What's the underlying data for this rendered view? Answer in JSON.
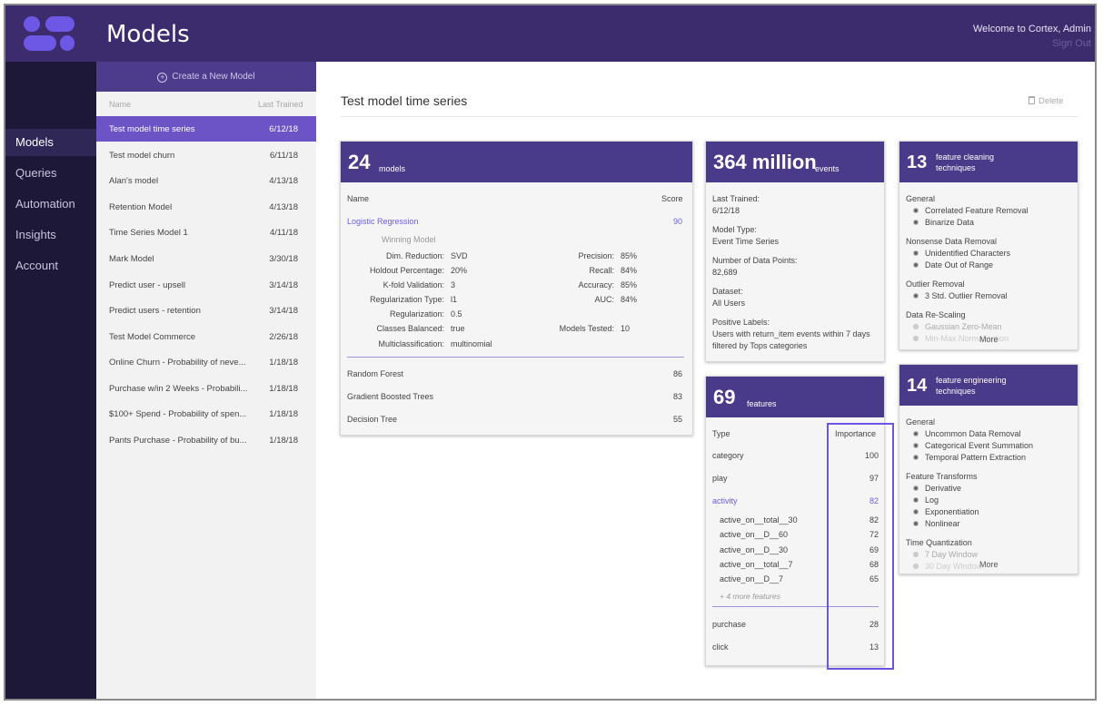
{
  "header": {
    "title": "Models",
    "welcome": "Welcome to Cortex, Admin",
    "sign_out": "Sign Out"
  },
  "nav": {
    "items": [
      {
        "label": "Models"
      },
      {
        "label": "Queries"
      },
      {
        "label": "Automation"
      },
      {
        "label": "Insights"
      },
      {
        "label": "Account"
      }
    ]
  },
  "list": {
    "create_label": "Create a New Model",
    "col_name": "Name",
    "col_last_trained": "Last Trained",
    "rows": [
      {
        "name": "Test model time series",
        "date": "6/12/18"
      },
      {
        "name": "Test model churn",
        "date": "6/11/18"
      },
      {
        "name": "Alan's model",
        "date": "4/13/18"
      },
      {
        "name": "Retention Model",
        "date": "4/13/18"
      },
      {
        "name": "Time Series Model 1",
        "date": "4/11/18"
      },
      {
        "name": "Mark Model",
        "date": "3/30/18"
      },
      {
        "name": "Predict user - upsell",
        "date": "3/14/18"
      },
      {
        "name": "Predict users - retention",
        "date": "3/14/18"
      },
      {
        "name": "Test Model Commerce",
        "date": "2/26/18"
      },
      {
        "name": "Online Churn - Probability of neve...",
        "date": "1/18/18"
      },
      {
        "name": "Purchase w/in 2 Weeks - Probabili...",
        "date": "1/18/18"
      },
      {
        "name": "$100+ Spend - Probability of spen...",
        "date": "1/18/18"
      },
      {
        "name": "Pants Purchase - Probability of bu...",
        "date": "1/18/18"
      }
    ]
  },
  "main": {
    "title": "Test model time series",
    "delete_label": "Delete"
  },
  "models_card": {
    "count": "24",
    "unit": "models",
    "col_name": "Name",
    "col_score": "Score",
    "winner": {
      "name": "Logistic Regression",
      "score": "90",
      "tag": "Winning Model"
    },
    "params_left": [
      {
        "label": "Dim. Reduction:",
        "value": "SVD"
      },
      {
        "label": "Holdout Percentage:",
        "value": "20%"
      },
      {
        "label": "K-fold Validation:",
        "value": "3"
      },
      {
        "label": "Regularization Type:",
        "value": "l1"
      },
      {
        "label": "Regularization:",
        "value": "0.5"
      },
      {
        "label": "Classes Balanced:",
        "value": "true"
      },
      {
        "label": "Multiclassification:",
        "value": "multinomial"
      }
    ],
    "params_right": [
      {
        "label": "Precision:",
        "value": "85%"
      },
      {
        "label": "Recall:",
        "value": "84%"
      },
      {
        "label": "Accuracy:",
        "value": "85%"
      },
      {
        "label": "AUC:",
        "value": "84%"
      },
      {
        "label": "Models Tested:",
        "value": "10"
      }
    ],
    "others": [
      {
        "name": "Random Forest",
        "score": "86"
      },
      {
        "name": "Gradient Boosted Trees",
        "score": "83"
      },
      {
        "name": "Decision Tree",
        "score": "55"
      }
    ]
  },
  "events_card": {
    "count": "364 million",
    "unit": "events",
    "fields": [
      {
        "label": "Last Trained:",
        "value": "6/12/18"
      },
      {
        "label": "Model Type:",
        "value": "Event Time Series"
      },
      {
        "label": "Number of Data Points:",
        "value": "82,689"
      },
      {
        "label": "Dataset:",
        "value": "All Users"
      },
      {
        "label": "Positive Labels:",
        "value": "Users with return_item events within 7 days",
        "value2": "filtered by Tops categories"
      }
    ]
  },
  "features_card": {
    "count": "69",
    "unit": "features",
    "col_type": "Type",
    "col_importance": "Importance",
    "top": [
      {
        "name": "category",
        "value": "100"
      },
      {
        "name": "play",
        "value": "97"
      },
      {
        "name": "activity",
        "value": "82"
      }
    ],
    "sub": [
      {
        "name": "active_on__total__30",
        "value": "82"
      },
      {
        "name": "active_on__D__60",
        "value": "72"
      },
      {
        "name": "active_on__D__30",
        "value": "69"
      },
      {
        "name": "active_on__total__7",
        "value": "68"
      },
      {
        "name": "active_on__D__7",
        "value": "65"
      }
    ],
    "more": "+ 4 more features",
    "bottom": [
      {
        "name": "purchase",
        "value": "28"
      },
      {
        "name": "click",
        "value": "13"
      }
    ]
  },
  "cleaning_card": {
    "count": "13",
    "title1": "feature cleaning",
    "title2": "techniques",
    "groups": [
      {
        "title": "General",
        "items": [
          "Correlated Feature Removal",
          "Binarize Data"
        ]
      },
      {
        "title": "Nonsense Data Removal",
        "items": [
          "Unidentified Characters",
          "Date Out of Range"
        ]
      },
      {
        "title": "Outlier Removal",
        "items": [
          "3 Std. Outlier Removal"
        ]
      },
      {
        "title": "Data Re-Scaling",
        "items": [
          "Gaussian Zero-Mean",
          "Min-Max Normalization"
        ]
      }
    ],
    "more": "More"
  },
  "engineering_card": {
    "count": "14",
    "title1": "feature engineering",
    "title2": "techniques",
    "groups": [
      {
        "title": "General",
        "items": [
          "Uncommon Data Removal",
          "Categorical Event Summation",
          "Temporal Pattern Extraction"
        ]
      },
      {
        "title": "Feature Transforms",
        "items": [
          "Derivative",
          "Log",
          "Exponentiation",
          "Nonlinear"
        ]
      },
      {
        "title": "Time Quantization",
        "items": [
          "7 Day Window",
          "30 Day Window"
        ]
      }
    ],
    "more": "More"
  },
  "colors": {
    "header": "#3c2c6e",
    "nav": "#1e1838",
    "accent": "#6c54c6",
    "card_header": "#4a3a8a",
    "link": "#6c5ce7"
  }
}
